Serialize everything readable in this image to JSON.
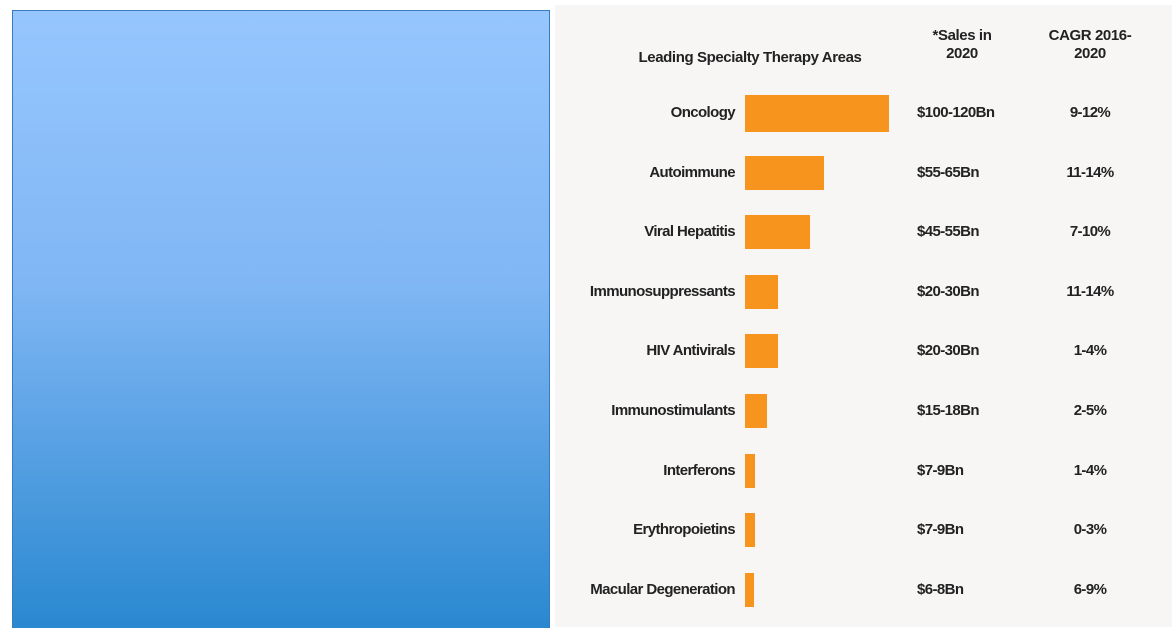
{
  "chart_data": {
    "type": "bar",
    "orientation": "horizontal",
    "title": "Leading Specialty Therapy Areas",
    "value_header": "*Sales in 2020",
    "growth_header": "CAGR 2016-2020",
    "categories": [
      "Oncology",
      "Autoimmune",
      "Viral Hepatitis",
      "Immunosuppressants",
      "HIV Antivirals",
      "Immunostimulants",
      "Interferons",
      "Erythropoietins",
      "Macular Degeneration"
    ],
    "values": [
      110,
      60,
      50,
      25,
      25,
      16.5,
      8,
      8,
      7
    ],
    "value_labels": [
      "$100-120Bn",
      "$55-65Bn",
      "$45-55Bn",
      "$20-30Bn",
      "$20-30Bn",
      "$15-18Bn",
      "$7-9Bn",
      "$7-9Bn",
      "$6-8Bn"
    ],
    "growth_labels": [
      "9-12%",
      "11-14%",
      "7-10%",
      "11-14%",
      "1-4%",
      "2-5%",
      "1-4%",
      "0-3%",
      "6-9%"
    ],
    "color": "#f7941d"
  }
}
